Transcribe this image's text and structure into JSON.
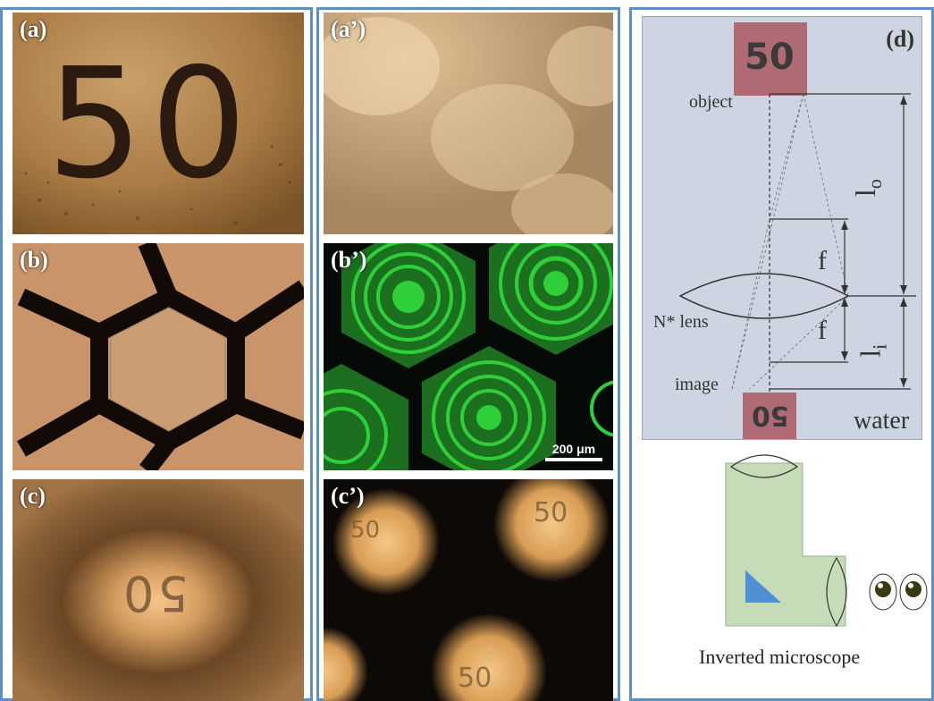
{
  "panels": {
    "a": "(a)",
    "a_prime": "(a’)",
    "b": "(b)",
    "b_prime": "(b’)",
    "c": "(c)",
    "c_prime": "(c’)",
    "d": "(d)"
  },
  "a_text": "50",
  "scale_bar": "200 μm",
  "c_mirror_text": "50",
  "c_prime_texts": [
    "50",
    "50",
    "50"
  ],
  "diagram": {
    "object_box": "50",
    "image_box": "50",
    "object_label": "object",
    "image_label": "image",
    "lens_label": "N* lens",
    "f_top": "f",
    "f_bottom": "f",
    "lo_main": "l",
    "lo_sub": "o",
    "li_main": "l",
    "li_sub": "i",
    "water_label": "water",
    "microscope_label": "Inverted microscope"
  },
  "colors": {
    "frame_border": "#5b8fc9",
    "diagram_bg": "#cdd5e2",
    "box_fill": "#b06a74",
    "microscope_fill": "#c6dbb7",
    "prism": "#4f8fd6",
    "hex_green": "#2fcf3a"
  }
}
